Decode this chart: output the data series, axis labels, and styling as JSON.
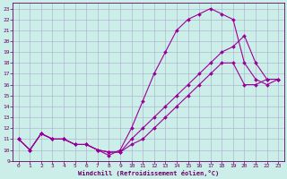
{
  "xlabel": "Windchill (Refroidissement éolien,°C)",
  "bg_color": "#cceee8",
  "line_color": "#990099",
  "grid_color": "#aaaacc",
  "xlim": [
    -0.5,
    23.5
  ],
  "ylim": [
    9,
    23.5
  ],
  "xticks": [
    0,
    1,
    2,
    3,
    4,
    5,
    6,
    7,
    8,
    9,
    10,
    11,
    12,
    13,
    14,
    15,
    16,
    17,
    18,
    19,
    20,
    21,
    22,
    23
  ],
  "yticks": [
    9,
    10,
    11,
    12,
    13,
    14,
    15,
    16,
    17,
    18,
    19,
    20,
    21,
    22,
    23
  ],
  "line1_x": [
    0,
    1,
    2,
    3,
    4,
    5,
    6,
    7,
    8,
    9,
    10,
    11,
    12,
    13,
    14,
    15,
    16,
    17,
    18,
    19,
    20,
    21,
    22,
    23
  ],
  "line1_y": [
    11,
    10,
    11.5,
    11,
    11,
    10.5,
    10.5,
    10,
    9.5,
    10,
    12,
    14.5,
    17,
    19,
    21,
    22,
    22.5,
    23,
    22.5,
    22,
    18,
    16.5,
    16,
    16.5
  ],
  "line2_x": [
    0,
    1,
    2,
    3,
    4,
    5,
    6,
    7,
    8,
    9,
    10,
    11,
    12,
    13,
    14,
    15,
    16,
    17,
    18,
    19,
    20,
    21,
    22,
    23
  ],
  "line2_y": [
    11,
    10,
    11.5,
    11,
    11,
    10.5,
    10.5,
    10,
    9.8,
    9.8,
    11,
    12,
    13,
    14,
    15,
    16,
    17,
    18,
    19,
    19.5,
    20.5,
    18,
    16.5,
    16.5
  ],
  "line3_x": [
    0,
    1,
    2,
    3,
    4,
    5,
    6,
    7,
    8,
    9,
    10,
    11,
    12,
    13,
    14,
    15,
    16,
    17,
    18,
    19,
    20,
    21,
    22,
    23
  ],
  "line3_y": [
    11,
    10,
    11.5,
    11,
    11,
    10.5,
    10.5,
    10,
    9.8,
    9.8,
    10.5,
    11,
    12,
    13,
    14,
    15,
    16,
    17,
    18,
    18,
    16,
    16,
    16.5,
    16.5
  ]
}
